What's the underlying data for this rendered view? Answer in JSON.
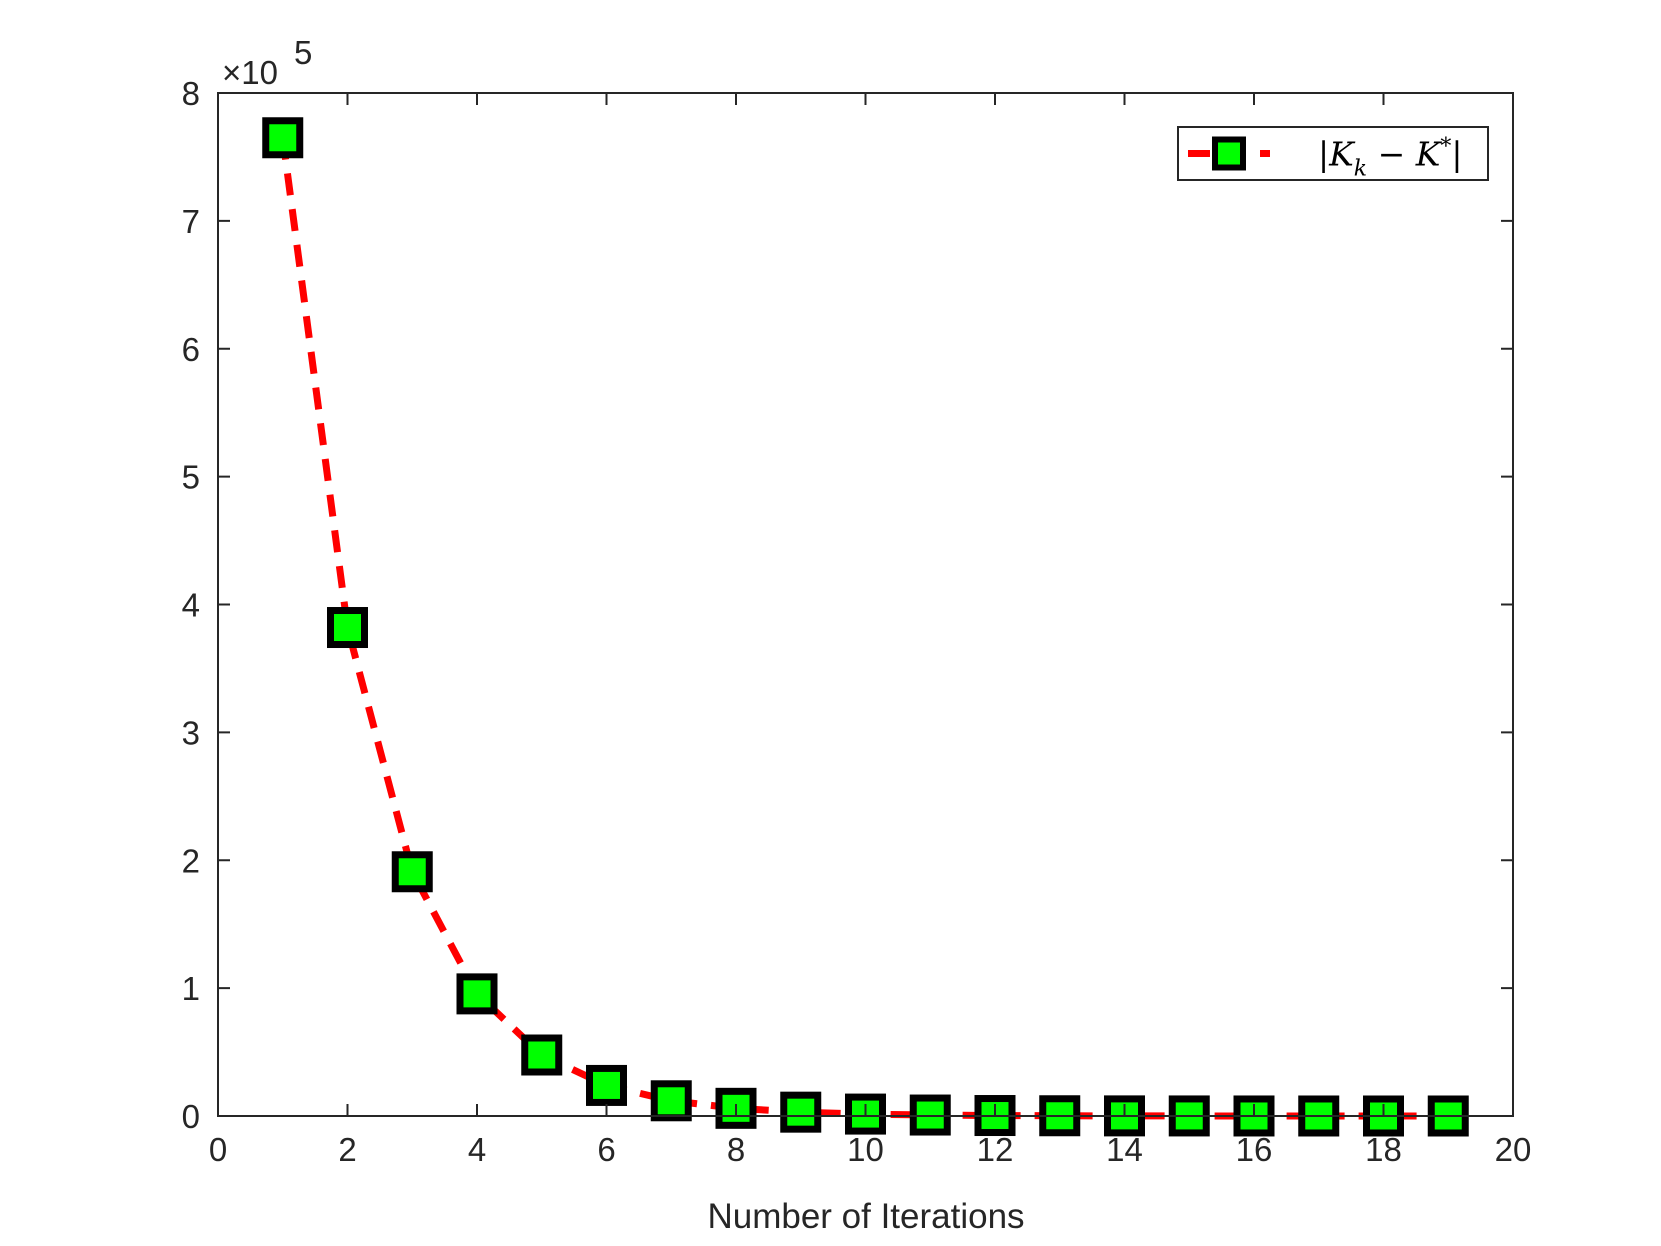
{
  "chart_data": {
    "type": "line",
    "title": "",
    "xlabel": "Number of Iterations",
    "ylabel": "",
    "xlim": [
      0,
      20
    ],
    "ylim": [
      0,
      800000
    ],
    "x_ticks": [
      0,
      2,
      4,
      6,
      8,
      10,
      12,
      14,
      16,
      18,
      20
    ],
    "x_tick_labels": [
      "0",
      "2",
      "4",
      "6",
      "8",
      "10",
      "12",
      "14",
      "16",
      "18",
      "20"
    ],
    "y_ticks": [
      0,
      100000,
      200000,
      300000,
      400000,
      500000,
      600000,
      700000,
      800000
    ],
    "y_tick_labels": [
      "0",
      "1",
      "2",
      "3",
      "4",
      "5",
      "6",
      "7",
      "8"
    ],
    "y_exponent_label": "×10",
    "y_exponent_power": "5",
    "grid": false,
    "legend_placement": "top-right",
    "series": [
      {
        "name": "|K_k − K*|",
        "line_color": "#ff0000",
        "line_style": "dashed",
        "marker": "square",
        "marker_face_color": "#00ff00",
        "marker_edge_color": "#000000",
        "x": [
          1,
          2,
          3,
          4,
          5,
          6,
          7,
          8,
          9,
          10,
          11,
          12,
          13,
          14,
          15,
          16,
          17,
          18,
          19
        ],
        "y": [
          765000,
          382000,
          191000,
          95500,
          47700,
          23900,
          11900,
          6000,
          3000,
          1500,
          750,
          370,
          190,
          90,
          50,
          20,
          10,
          5,
          2
        ]
      }
    ],
    "legend": {
      "label_parts": {
        "bar_left": "|",
        "k_main": "K",
        "k_sub": "k",
        "minus": " − ",
        "kstar_main": "K",
        "kstar_sup": "*",
        "bar_right": "|"
      }
    }
  }
}
